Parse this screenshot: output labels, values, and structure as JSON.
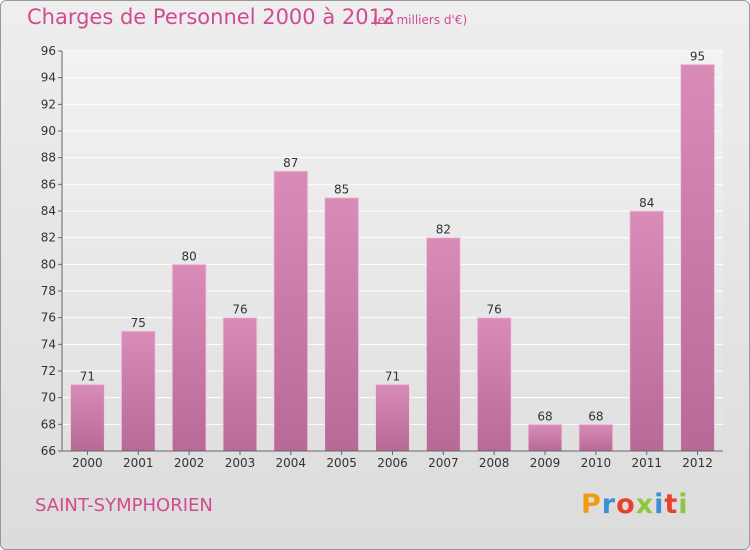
{
  "header": {
    "title": "Charges de Personnel 2000 à 2012",
    "subtitle": "(en milliers d'€)"
  },
  "footer": {
    "location": "SAINT-SYMPHORIEN",
    "logo": {
      "letters": [
        "P",
        "r",
        "o",
        "x",
        "i",
        "t",
        "i"
      ],
      "colors": [
        "#f39c12",
        "#3b8fd9",
        "#e8402a",
        "#8dc63f",
        "#3b8fd9",
        "#e8402a",
        "#8dc63f"
      ]
    }
  },
  "colors": {
    "bar": "#d98cb7",
    "bar_dark": "#b86a97",
    "title": "#d24a8f"
  },
  "chart_data": {
    "type": "bar",
    "title": "Charges de Personnel 2000 à 2012",
    "subtitle": "(en milliers d'€)",
    "categories": [
      "2000",
      "2001",
      "2002",
      "2003",
      "2004",
      "2005",
      "2006",
      "2007",
      "2008",
      "2009",
      "2010",
      "2011",
      "2012"
    ],
    "values": [
      71,
      75,
      80,
      76,
      87,
      85,
      71,
      82,
      76,
      68,
      68,
      84,
      95
    ],
    "ylim": [
      66,
      96
    ],
    "yticks": [
      66,
      68,
      70,
      72,
      74,
      76,
      78,
      80,
      82,
      84,
      86,
      88,
      90,
      92,
      94,
      96
    ],
    "grid": true,
    "data_labels": true
  }
}
